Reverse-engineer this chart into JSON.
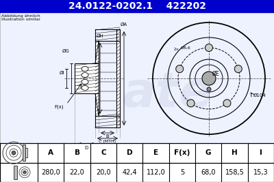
{
  "header_bg": "#0000CC",
  "header_text_color": "#FFFFFF",
  "part_number": "24.0122-0202.1",
  "art_number": "422202",
  "subtitle_line1": "Abbildung ähnlich",
  "subtitle_line2": "Illustration similar",
  "table_headers": [
    "A",
    "B",
    "C",
    "D",
    "E",
    "F(x)",
    "G",
    "H",
    "I"
  ],
  "table_values": [
    "280,0",
    "22,0",
    "20,0",
    "42,4",
    "112,0",
    "5",
    "68,0",
    "158,5",
    "15,3"
  ],
  "background_color": "#FFFFFF",
  "header_fontsize": 10,
  "table_fontsize": 7.5
}
